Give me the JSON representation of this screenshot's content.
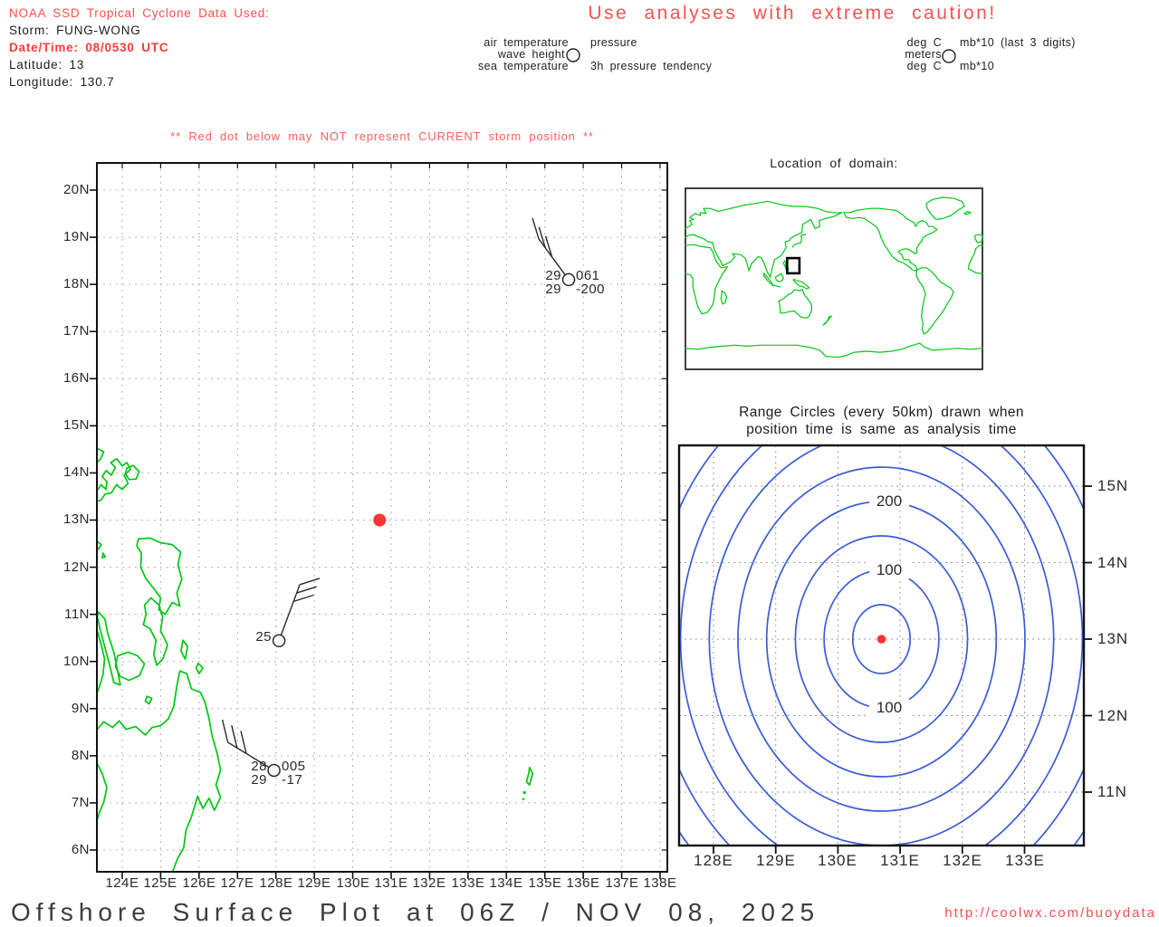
{
  "colors": {
    "red_text": "#ff4d4d",
    "red_dot": "#ff3333",
    "green_coast": "#00c814",
    "blue_ring": "#3c5cd4",
    "grid_main": "#b3b3b3",
    "grid_range": "#9e9e9e",
    "frame": "#111111",
    "ink": "#2a2a2a"
  },
  "header": {
    "source_line": "NOAA SSD Tropical Cyclone Data Used:",
    "storm_label": "Storm: FUNG-WONG",
    "datetime_label": "Date/Time: 08/0530 UTC",
    "latitude_label": "Latitude: 13",
    "longitude_label": "Longitude: 130.7"
  },
  "caution": "Use analyses with extreme caution!",
  "station_model_legend": {
    "left_block": {
      "line1_left": "air temperature",
      "line1_right": "pressure",
      "line2_left": "wave height",
      "line3_left": "sea temperature",
      "line3_right": "3h pressure tendency"
    },
    "right_block": {
      "line1_left": "deg C",
      "line1_right": "mb*10 (last 3 digits)",
      "line2_left": "meters",
      "line3_left": "deg C",
      "line3_right": "mb*10"
    }
  },
  "warning": "** Red dot below may NOT represent CURRENT storm position **",
  "main_map": {
    "lon_ticks": [
      "124E",
      "125E",
      "126E",
      "127E",
      "128E",
      "129E",
      "130E",
      "131E",
      "132E",
      "133E",
      "134E",
      "135E",
      "136E",
      "137E",
      "138E"
    ],
    "lat_ticks": [
      "20N",
      "19N",
      "18N",
      "17N",
      "16N",
      "15N",
      "14N",
      "13N",
      "12N",
      "11N",
      "10N",
      "9N",
      "8N",
      "7N",
      "6N"
    ],
    "storm_position": {
      "lat": 13,
      "lon": 130.7
    },
    "stations": [
      {
        "lat": 18.1,
        "lon": 135.62,
        "air_temp": "29",
        "pressure": "061",
        "sea_temp": "29",
        "tendency": "-200",
        "wind_barbs": 3,
        "barb_dir": "NE"
      },
      {
        "lat": 10.44,
        "lon": 128.08,
        "air_temp": "25",
        "pressure": "",
        "sea_temp": "",
        "tendency": "",
        "wind_barbs": 3,
        "barb_dir": "ENE"
      },
      {
        "lat": 7.69,
        "lon": 127.95,
        "air_temp": "28",
        "pressure": "005",
        "sea_temp": "29",
        "tendency": "-17",
        "wind_barbs": 3,
        "barb_dir": "NE"
      }
    ]
  },
  "domain_map": {
    "title": "Location of domain:",
    "domain_box": {
      "lon_min": 123.3,
      "lon_max": 138.2,
      "lat_min": 5.5,
      "lat_max": 20.6
    }
  },
  "range_plot": {
    "title_line1": "Range Circles (every 50km) drawn when",
    "title_line2": "position time is same as analysis time",
    "lon_ticks": [
      "128E",
      "129E",
      "130E",
      "131E",
      "132E",
      "133E"
    ],
    "lat_ticks": [
      "15N",
      "14N",
      "13N",
      "12N",
      "11N"
    ],
    "ring_interval_km": 50,
    "ring_labels": [
      {
        "text": "200",
        "position": "top"
      },
      {
        "text": "100",
        "position": "upper"
      },
      {
        "text": "100",
        "position": "lower"
      }
    ],
    "center": {
      "lat": 13,
      "lon": 130.7
    }
  },
  "footer": {
    "title": "Offshore Surface Plot at 06Z / NOV 08, 2025",
    "url": "http://coolwx.com/buoydata"
  }
}
